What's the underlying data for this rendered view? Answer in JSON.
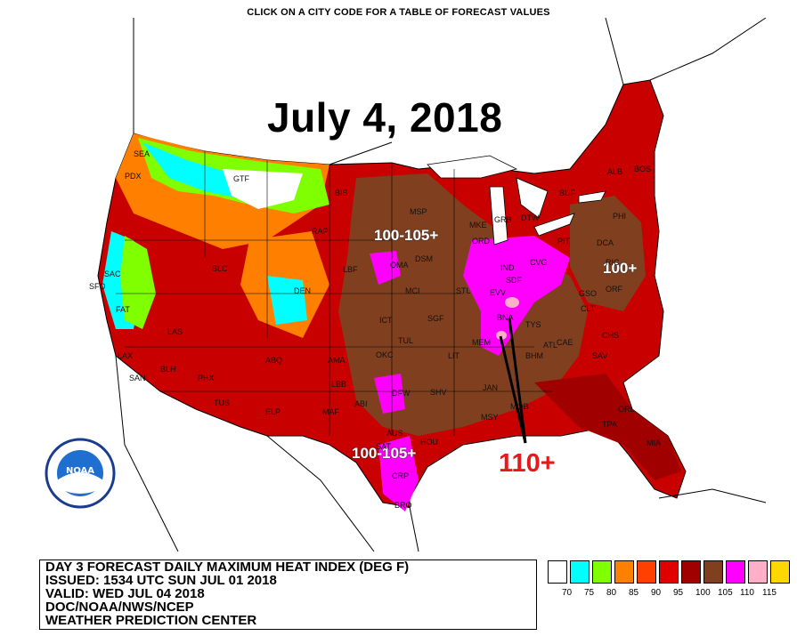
{
  "header": "CLICK ON A CITY CODE FOR A TABLE OF FORECAST VALUES",
  "map_title": "July 4, 2018",
  "annotations": {
    "north_plains": "100-105+",
    "northeast": "100+",
    "south_texas": "100-105+",
    "mid_mississippi": "110+"
  },
  "cities": [
    "SEA",
    "PDX",
    "GTF",
    "BIS",
    "MSP",
    "RAP",
    "GRB",
    "DTW",
    "BUF",
    "ALB",
    "BOS",
    "PHI",
    "DCA",
    "SAC",
    "SFO",
    "SLC",
    "DEN",
    "LBF",
    "OMA",
    "DSM",
    "MKE",
    "ORD",
    "IND",
    "CVG",
    "SDF",
    "BNA",
    "ATL",
    "CLT",
    "ORF",
    "PIT",
    "ICT",
    "SGF",
    "STL",
    "MCI",
    "EVV",
    "MEM",
    "TUL",
    "OKC",
    "LIT",
    "ABQ",
    "AMA",
    "PHX",
    "LAS",
    "LAX",
    "SAN",
    "TUS",
    "ELP",
    "MAF",
    "ABI",
    "DFW",
    "SHV",
    "JAN",
    "MOB",
    "MSY",
    "TPA",
    "ORL",
    "MIA",
    "SAT",
    "AUS",
    "HOU",
    "CRP",
    "BRO",
    "FAT",
    "BLH",
    "LBB",
    "BHM",
    "CHS",
    "SAV",
    "RIC",
    "CAE",
    "TYS",
    "GSO"
  ],
  "legend": {
    "colors": [
      "#ffffff",
      "#00ffff",
      "#80ff00",
      "#ff8000",
      "#ff4000",
      "#e00000",
      "#a00000",
      "#804020",
      "#ff00ff",
      "#ffb0c8",
      "#ffd700"
    ],
    "ticks": [
      "70",
      "75",
      "80",
      "85",
      "90",
      "95",
      "100",
      "105",
      "110",
      "115"
    ]
  },
  "info": {
    "line1": "DAY 3 FORECAST DAILY MAXIMUM HEAT INDEX (DEG F)",
    "line2": "ISSUED: 1534 UTC SUN JUL 01 2018",
    "line3": "VALID: WED JUL 04 2018",
    "line4": "DOC/NOAA/NWS/NCEP",
    "line5": "WEATHER PREDICTION CENTER"
  },
  "logo_text": "NOAA"
}
